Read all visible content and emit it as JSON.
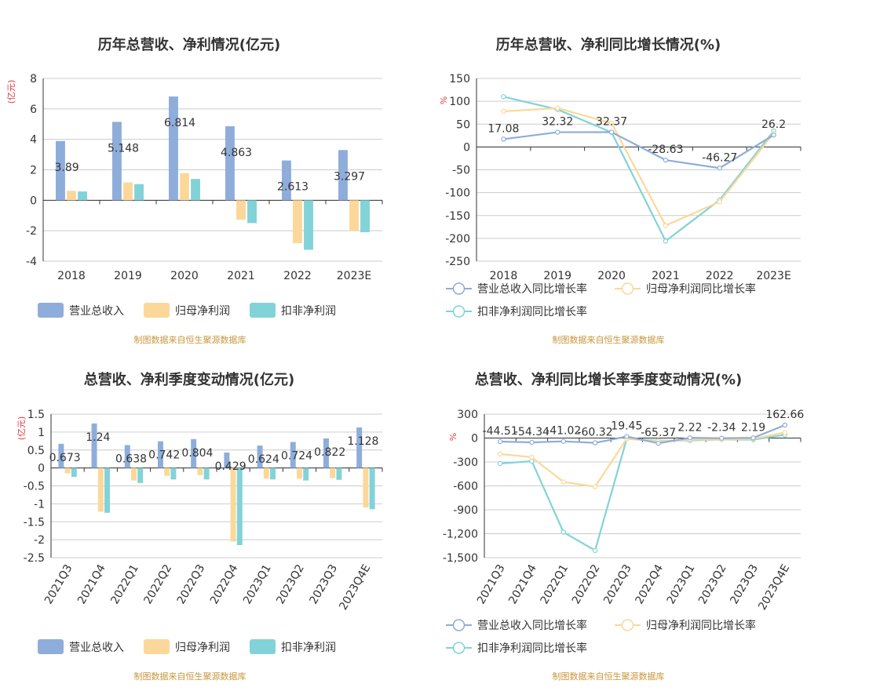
{
  "colors": {
    "revenue": "#8eaddb",
    "netprofit": "#fbd89a",
    "deducted": "#82d3d8",
    "unit": "#e0383e",
    "source": "#c8963e",
    "axis": "#333333",
    "grid": "#cccccc"
  },
  "chart_data": [
    {
      "type": "bar",
      "title": "历年总营收、净利情况(亿元)",
      "unit": "(亿元)",
      "categories": [
        "2018",
        "2019",
        "2020",
        "2021",
        "2022",
        "2023E"
      ],
      "ylim": [
        -4,
        8
      ],
      "yticks": [
        "8",
        "6",
        "4",
        "2",
        "0",
        "-2",
        "-4"
      ],
      "ytick_values": [
        8,
        6,
        4,
        2,
        0,
        -2,
        -4
      ],
      "series": [
        {
          "name": "营业总收入",
          "values": [
            3.89,
            5.148,
            6.814,
            4.863,
            2.613,
            3.297
          ],
          "labels": [
            "3.89",
            "5.148",
            "6.814",
            "4.863",
            "2.613",
            "3.297"
          ]
        },
        {
          "name": "归母净利润",
          "values": [
            0.62,
            1.17,
            1.78,
            -1.28,
            -2.82,
            -2.0
          ]
        },
        {
          "name": "扣非净利润",
          "values": [
            0.58,
            1.06,
            1.4,
            -1.5,
            -3.25,
            -2.1
          ]
        }
      ],
      "legend": [
        "营业总收入",
        "归母净利润",
        "扣非净利润"
      ],
      "legend_position": "bottom",
      "source": "制图数据来自恒生聚源数据库"
    },
    {
      "type": "line",
      "title": "历年总营收、净利同比增长情况(%)",
      "unit": "%",
      "categories": [
        "2018",
        "2019",
        "2020",
        "2021",
        "2022",
        "2023E"
      ],
      "ylim": [
        -250,
        150
      ],
      "yticks": [
        "150",
        "100",
        "50",
        "0",
        "-50",
        "-100",
        "-150",
        "-200",
        "-250"
      ],
      "ytick_values": [
        150,
        100,
        50,
        0,
        -50,
        -100,
        -150,
        -200,
        -250
      ],
      "series": [
        {
          "name": "营业总收入同比增长率",
          "values": [
            17.08,
            32.32,
            32.37,
            -28.63,
            -46.27,
            26.2
          ],
          "labels": [
            "17.08",
            "32.32",
            "32.37",
            "-28.63",
            "-46.27",
            "26.2"
          ]
        },
        {
          "name": "归母净利润同比增长率",
          "values": [
            78,
            85,
            52,
            -172,
            -120,
            30
          ]
        },
        {
          "name": "扣非净利润同比增长率",
          "values": [
            110,
            82,
            32,
            -206,
            -116,
            35
          ]
        }
      ],
      "legend": [
        "营业总收入同比增长率",
        "归母净利润同比增长率",
        "扣非净利润同比增长率"
      ],
      "legend_position": "bottom",
      "source": "制图数据来自恒生聚源数据库"
    },
    {
      "type": "bar",
      "title": "总营收、净利季度变动情况(亿元)",
      "unit": "(亿元)",
      "categories": [
        "2021Q3",
        "2021Q4",
        "2022Q1",
        "2022Q2",
        "2022Q3",
        "2022Q4",
        "2023Q1",
        "2023Q2",
        "2023Q3",
        "2023Q4E"
      ],
      "ylim": [
        -2.5,
        1.5
      ],
      "yticks": [
        "1.5",
        "1",
        "0.5",
        "0",
        "-0.5",
        "-1",
        "-1.5",
        "-2",
        "-2.5"
      ],
      "ytick_values": [
        1.5,
        1,
        0.5,
        0,
        -0.5,
        -1,
        -1.5,
        -2,
        -2.5
      ],
      "series": [
        {
          "name": "营业总收入",
          "values": [
            0.673,
            1.24,
            0.638,
            0.742,
            0.804,
            0.429,
            0.624,
            0.724,
            0.822,
            1.128
          ],
          "labels": [
            "0.673",
            "1.24",
            "0.638",
            "0.742",
            "0.804",
            "0.429",
            "0.624",
            "0.724",
            "0.822",
            "1.128"
          ]
        },
        {
          "name": "归母净利润",
          "values": [
            -0.15,
            -1.22,
            -0.35,
            -0.22,
            -0.2,
            -2.05,
            -0.3,
            -0.3,
            -0.28,
            -1.1
          ]
        },
        {
          "name": "扣非净利润",
          "values": [
            -0.25,
            -1.25,
            -0.42,
            -0.32,
            -0.32,
            -2.15,
            -0.32,
            -0.35,
            -0.33,
            -1.15
          ]
        }
      ],
      "legend": [
        "营业总收入",
        "归母净利润",
        "扣非净利润"
      ],
      "legend_position": "bottom",
      "source": "制图数据来自恒生聚源数据库"
    },
    {
      "type": "line",
      "title": "总营收、净利同比增长率季度变动情况(%)",
      "unit": "%",
      "categories": [
        "2021Q3",
        "2021Q4",
        "2022Q1",
        "2022Q2",
        "2022Q3",
        "2022Q4",
        "2023Q1",
        "2023Q2",
        "2023Q3",
        "2023Q4E"
      ],
      "ylim": [
        -1500,
        300
      ],
      "yticks": [
        "300",
        "0",
        "-300",
        "-600",
        "-900",
        "-1,200",
        "-1,500"
      ],
      "ytick_values": [
        300,
        0,
        -300,
        -600,
        -900,
        -1200,
        -1500
      ],
      "series": [
        {
          "name": "营业总收入同比增长率",
          "values": [
            -44.51,
            -54.34,
            -41.02,
            -60.32,
            19.45,
            -65.37,
            2.22,
            -2.34,
            2.19,
            162.66
          ],
          "labels": [
            "-44.51",
            "-54.34",
            "-41.02",
            "-60.32",
            "19.45",
            "-65.37",
            "2.22",
            "-2.34",
            "2.19",
            "162.66"
          ]
        },
        {
          "name": "归母净利润同比增长率",
          "values": [
            -200,
            -240,
            -550,
            -610,
            -10,
            -40,
            -20,
            -20,
            -10,
            70
          ]
        },
        {
          "name": "扣非净利润同比增长率",
          "values": [
            -320,
            -290,
            -1180,
            -1410,
            -10,
            -30,
            -30,
            -20,
            -20,
            40
          ]
        }
      ],
      "legend": [
        "营业总收入同比增长率",
        "归母净利润同比增长率",
        "扣非净利润同比增长率"
      ],
      "legend_position": "bottom",
      "source": "制图数据来自恒生聚源数据库"
    }
  ]
}
